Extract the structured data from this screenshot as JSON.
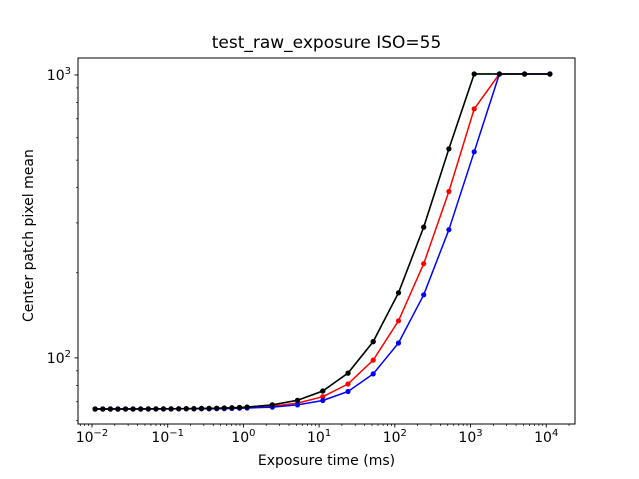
{
  "figure": {
    "background": "#ffffff",
    "axis_color": "#000000"
  },
  "chart_data": {
    "type": "line",
    "title": "test_raw_exposure ISO=55",
    "xlabel": "Exposure time (ms)",
    "ylabel": "Center patch pixel mean",
    "x_scale": "log",
    "y_scale": "log",
    "grid": false,
    "legend": "none",
    "marker": "circle",
    "xlim": [
      0.00653,
      24000
    ],
    "ylim": [
      58.4,
      1148
    ],
    "tick_label_base": "10",
    "x_major_tick_exponents": [
      -2,
      -1,
      0,
      1,
      2,
      3,
      4
    ],
    "y_major_tick_exponents": [
      2,
      3
    ],
    "x": [
      0.011,
      0.0139,
      0.0175,
      0.022,
      0.0277,
      0.0349,
      0.044,
      0.0554,
      0.0699,
      0.088,
      0.1109,
      0.1397,
      0.176,
      0.2218,
      0.2794,
      0.352,
      0.4435,
      0.5588,
      0.704,
      0.887,
      1.117,
      2.407,
      5.186,
      11.17,
      24.07,
      51.86,
      111.7,
      240.7,
      518.6,
      1117,
      2407,
      5186,
      11172
    ],
    "series": [
      {
        "name": "red-channel",
        "color": "#ff0000",
        "values": [
          66.0,
          66.0,
          66.0,
          66.0,
          66.0,
          66.0,
          66.0,
          66.0,
          66.0,
          66.1,
          66.1,
          66.1,
          66.1,
          66.1,
          66.2,
          66.2,
          66.3,
          66.3,
          66.4,
          66.5,
          66.7,
          67.5,
          69.2,
          72.9,
          80.9,
          98.2,
          135.3,
          215.2,
          387.5,
          758.5,
          1008,
          1008,
          1008
        ]
      },
      {
        "name": "green-channel",
        "color": "#008000",
        "values": [
          66.0,
          66.0,
          66.0,
          66.0,
          66.0,
          66.0,
          66.0,
          66.1,
          66.1,
          66.1,
          66.1,
          66.1,
          66.2,
          66.2,
          66.3,
          66.3,
          66.4,
          66.5,
          66.7,
          66.8,
          67.0,
          68.2,
          70.8,
          76.4,
          88.4,
          114.2,
          169.9,
          289.9,
          548.3,
          1008,
          1008,
          1008,
          1008
        ]
      },
      {
        "name": "blue-channel",
        "color": "#0000ff",
        "values": [
          66.0,
          66.0,
          66.0,
          66.0,
          66.0,
          66.0,
          66.0,
          66.0,
          66.0,
          66.0,
          66.0,
          66.1,
          66.1,
          66.1,
          66.1,
          66.1,
          66.2,
          66.2,
          66.3,
          66.4,
          66.5,
          67.0,
          68.2,
          70.7,
          76.1,
          87.8,
          112.9,
          167.1,
          283.8,
          535.1,
          1008,
          1008,
          1008
        ]
      },
      {
        "name": "black-channel",
        "color": "#000000",
        "values": [
          66.0,
          66.0,
          66.0,
          66.0,
          66.0,
          66.0,
          66.0,
          66.1,
          66.1,
          66.1,
          66.1,
          66.1,
          66.2,
          66.2,
          66.3,
          66.3,
          66.4,
          66.5,
          66.7,
          66.8,
          67.0,
          68.2,
          70.8,
          76.4,
          88.4,
          114.2,
          169.9,
          289.9,
          548.3,
          1008,
          1008,
          1008,
          1008
        ]
      }
    ]
  }
}
